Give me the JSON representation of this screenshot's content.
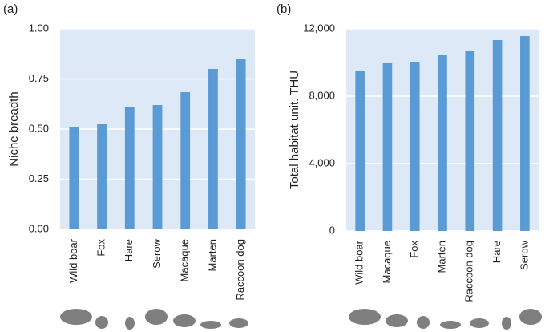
{
  "chart_data": [
    {
      "type": "bar",
      "panel_label": "(a)",
      "ylabel": "Niche breadth",
      "categories": [
        "Wild boar",
        "Fox",
        "Hare",
        "Serow",
        "Macaque",
        "Marten",
        "Raccoon dog"
      ],
      "values": [
        0.512,
        0.524,
        0.612,
        0.62,
        0.684,
        0.8,
        0.848
      ],
      "color": "#5b9bd5",
      "ylim": [
        0,
        1
      ],
      "yticks": [
        {
          "value": 0,
          "label": "0.00"
        },
        {
          "value": 0.25,
          "label": "0.25"
        },
        {
          "value": 0.5,
          "label": "0.50"
        },
        {
          "value": 0.75,
          "label": "0.75"
        },
        {
          "value": 1,
          "label": "1.00"
        }
      ],
      "grid": true
    },
    {
      "type": "bar",
      "panel_label": "(b)",
      "ylabel": "Total habitat unit. THU",
      "categories": [
        "Wild boar",
        "Macaque",
        "Fox",
        "Marten",
        "Raccoon dog",
        "Hare",
        "Serow"
      ],
      "values": [
        9476,
        10000,
        10048,
        10476,
        10667,
        11333,
        11571
      ],
      "color": "#5b9bd5",
      "ylim": [
        0,
        12000
      ],
      "yticks": [
        0,
        {
          "value": 4000,
          "label": "4,000"
        },
        {
          "value": 8000,
          "label": "8,000"
        },
        {
          "value": 12000,
          "label": "12,000"
        }
      ],
      "grid": true
    }
  ]
}
